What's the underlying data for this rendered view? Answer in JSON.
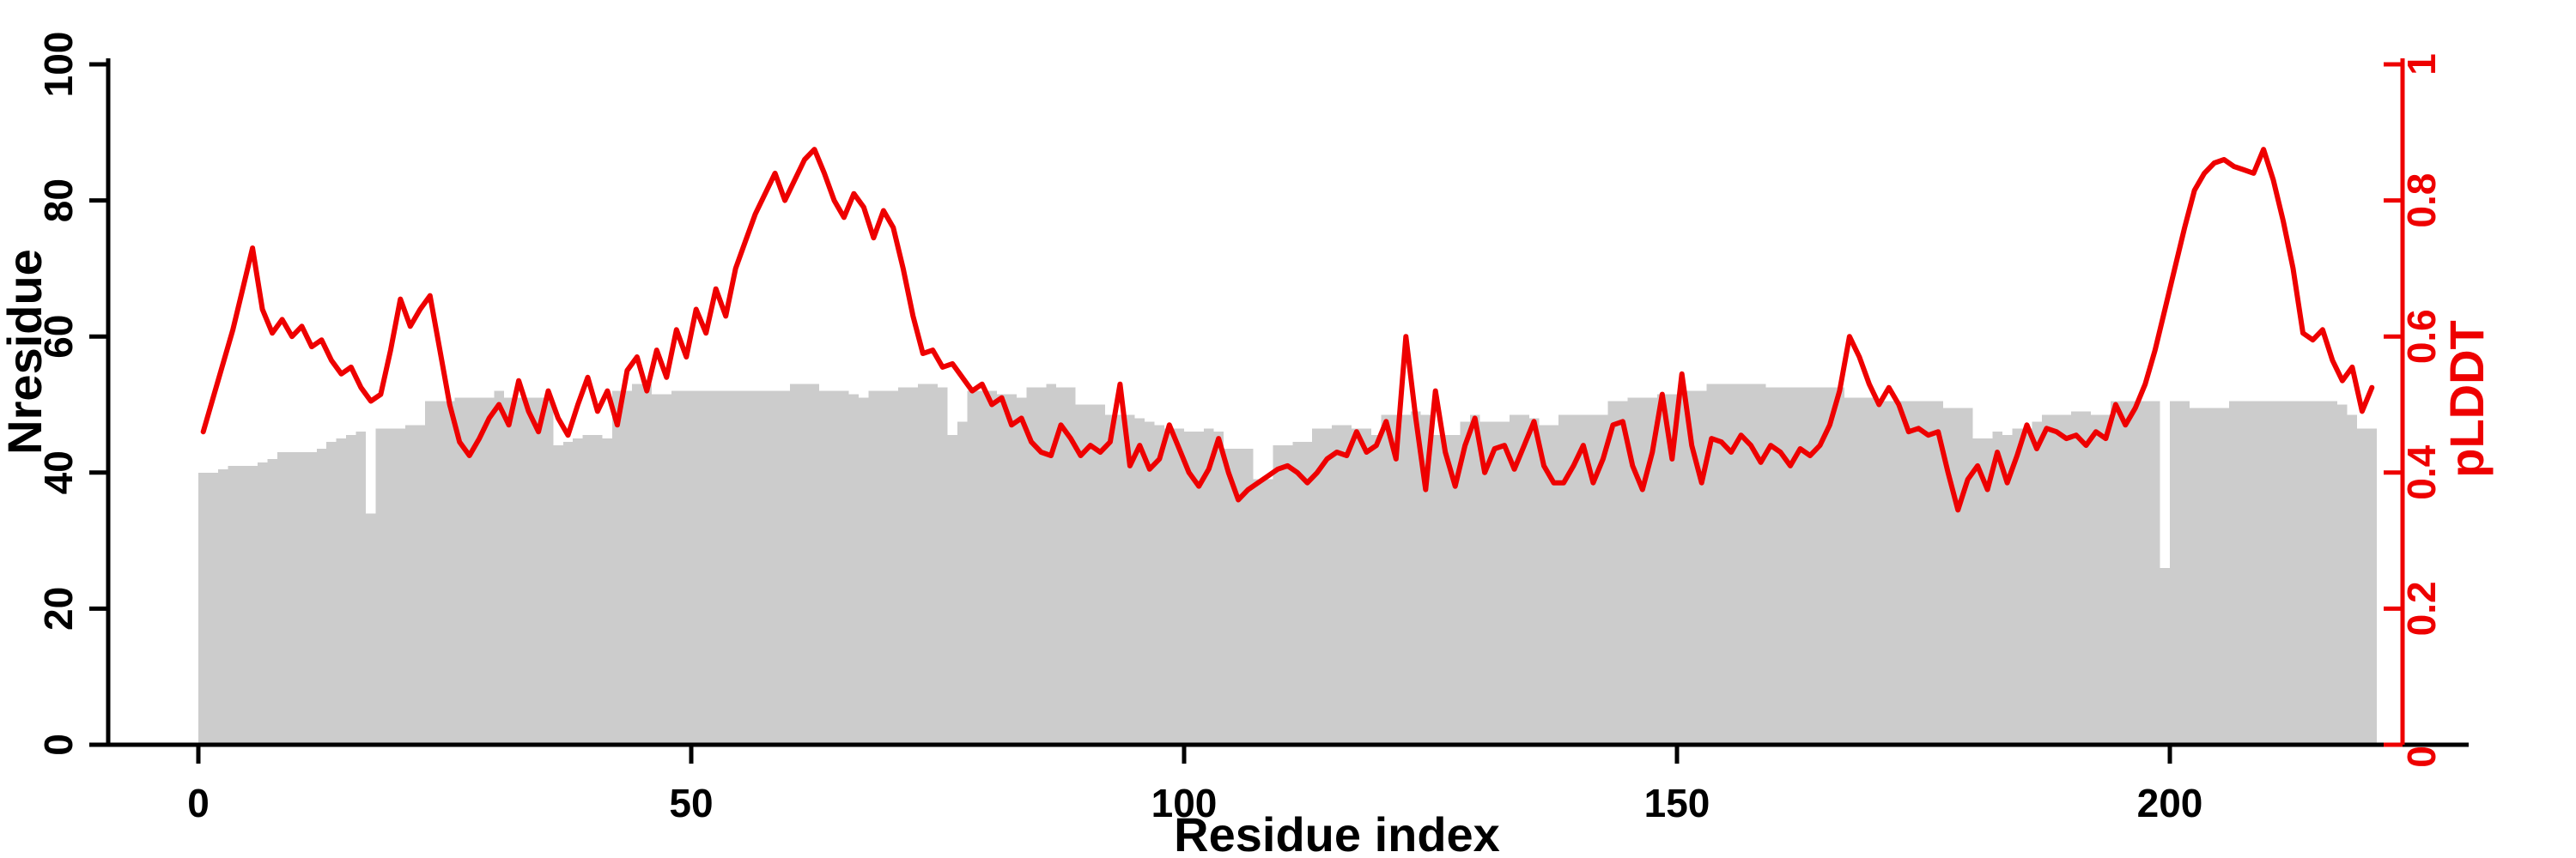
{
  "chart_data": {
    "type": "bar+line",
    "title": "",
    "x_axis": {
      "label": "Residue index",
      "ticks": [
        0,
        50,
        100,
        150,
        200
      ],
      "range": [
        0,
        221
      ]
    },
    "left_axis": {
      "label": "Nresidue",
      "ticks": [
        0,
        20,
        40,
        60,
        80,
        100
      ],
      "range": [
        0,
        100
      ],
      "color": "#000000"
    },
    "right_axis": {
      "label": "pLDDT",
      "tick_labels": [
        "0",
        "0.2",
        "0.4",
        "0.6",
        "0.8",
        "1"
      ],
      "tick_values": [
        0,
        0.2,
        0.4,
        0.6,
        0.8,
        1
      ],
      "range": [
        0,
        1
      ],
      "color": "#ee0000"
    },
    "grid": false,
    "legend": false,
    "background": "#ffffff",
    "series": [
      {
        "name": "Nresidue",
        "type": "bar",
        "axis": "left",
        "color": "#cccccc",
        "values": [
          40,
          40,
          40.5,
          41,
          41,
          41,
          41.5,
          42,
          43,
          43,
          43,
          43,
          43.5,
          44.5,
          45,
          45.5,
          46,
          34,
          46.5,
          46.5,
          46.5,
          47,
          47,
          50.5,
          50.5,
          50.5,
          51,
          51,
          51,
          51,
          52,
          51,
          51,
          51,
          51,
          51,
          44,
          44.5,
          45,
          45.5,
          45.5,
          45,
          52,
          52,
          53,
          53,
          51.5,
          51.5,
          52,
          52,
          52,
          52,
          52,
          52,
          52,
          52,
          52,
          52,
          52,
          52,
          53,
          53,
          53,
          52,
          52,
          52,
          51.5,
          51,
          52,
          52,
          52,
          52.5,
          52.5,
          53,
          53,
          52.5,
          45.5,
          47.5,
          52,
          52,
          52,
          51.5,
          51.5,
          51,
          52.5,
          52.5,
          53,
          52.5,
          52.5,
          50,
          50,
          50,
          48.5,
          48.5,
          48.5,
          48,
          47.5,
          47,
          46.5,
          46.5,
          46,
          46,
          46.5,
          46,
          43.5,
          43.5,
          43.5,
          39,
          39,
          44,
          44,
          44.5,
          44.5,
          46.5,
          46.5,
          47,
          47,
          46.5,
          46.5,
          45.5,
          48.5,
          48.5,
          48.5,
          49,
          48.5,
          45.5,
          45.5,
          45.5,
          47.5,
          48.5,
          47.5,
          47.5,
          47.5,
          48.5,
          48.5,
          48,
          47,
          47,
          48.5,
          48.5,
          48.5,
          48.5,
          48.5,
          50.5,
          50.5,
          51,
          51,
          51,
          51.5,
          51.5,
          51.5,
          52,
          52,
          53,
          53,
          53,
          53,
          53,
          53,
          52.5,
          52.5,
          52.5,
          52.5,
          52.5,
          52.5,
          52.5,
          52.5,
          51,
          51,
          51,
          50.5,
          50.5,
          50.5,
          50.5,
          50.5,
          50.5,
          50.5,
          49.5,
          49.5,
          49.5,
          45,
          45,
          46,
          45.5,
          46.5,
          46.5,
          47.5,
          48.5,
          48.5,
          48.5,
          49,
          49,
          48.5,
          48.5,
          50.5,
          50.5,
          50.5,
          50.5,
          50.5,
          26,
          50.5,
          50.5,
          49.5,
          49.5,
          49.5,
          49.5,
          50.5,
          50.5,
          50.5,
          50.5,
          50.5,
          50.5,
          50.5,
          50.5,
          50.5,
          50.5,
          50.5,
          50,
          48.5,
          46.5,
          46.5
        ]
      },
      {
        "name": "pLDDT",
        "type": "line",
        "axis": "right",
        "color": "#ee0000",
        "values": [
          0.46,
          0.51,
          0.56,
          0.61,
          0.67,
          0.73,
          0.64,
          0.605,
          0.625,
          0.6,
          0.615,
          0.585,
          0.595,
          0.565,
          0.545,
          0.555,
          0.525,
          0.505,
          0.515,
          0.58,
          0.655,
          0.615,
          0.64,
          0.66,
          0.58,
          0.5,
          0.445,
          0.425,
          0.45,
          0.48,
          0.5,
          0.47,
          0.535,
          0.49,
          0.46,
          0.52,
          0.48,
          0.455,
          0.5,
          0.54,
          0.49,
          0.52,
          0.47,
          0.55,
          0.57,
          0.52,
          0.58,
          0.54,
          0.61,
          0.57,
          0.64,
          0.605,
          0.67,
          0.63,
          0.7,
          0.74,
          0.78,
          0.81,
          0.84,
          0.8,
          0.83,
          0.86,
          0.875,
          0.84,
          0.8,
          0.775,
          0.81,
          0.79,
          0.745,
          0.785,
          0.76,
          0.7,
          0.63,
          0.575,
          0.58,
          0.555,
          0.56,
          0.54,
          0.52,
          0.53,
          0.5,
          0.51,
          0.47,
          0.48,
          0.445,
          0.43,
          0.425,
          0.47,
          0.45,
          0.425,
          0.44,
          0.43,
          0.445,
          0.53,
          0.41,
          0.44,
          0.405,
          0.42,
          0.47,
          0.435,
          0.4,
          0.38,
          0.405,
          0.45,
          0.4,
          0.36,
          0.375,
          0.385,
          0.395,
          0.405,
          0.41,
          0.4,
          0.385,
          0.4,
          0.42,
          0.43,
          0.425,
          0.46,
          0.43,
          0.44,
          0.475,
          0.42,
          0.6,
          0.48,
          0.375,
          0.52,
          0.43,
          0.38,
          0.44,
          0.48,
          0.4,
          0.435,
          0.44,
          0.405,
          0.44,
          0.475,
          0.41,
          0.385,
          0.385,
          0.41,
          0.44,
          0.385,
          0.42,
          0.47,
          0.475,
          0.41,
          0.375,
          0.43,
          0.515,
          0.42,
          0.545,
          0.44,
          0.385,
          0.45,
          0.445,
          0.43,
          0.455,
          0.44,
          0.415,
          0.44,
          0.43,
          0.41,
          0.435,
          0.425,
          0.44,
          0.47,
          0.52,
          0.6,
          0.57,
          0.53,
          0.5,
          0.525,
          0.5,
          0.46,
          0.465,
          0.455,
          0.46,
          0.4,
          0.345,
          0.39,
          0.41,
          0.375,
          0.43,
          0.385,
          0.425,
          0.47,
          0.435,
          0.465,
          0.46,
          0.45,
          0.455,
          0.44,
          0.46,
          0.45,
          0.5,
          0.47,
          0.495,
          0.53,
          0.58,
          0.64,
          0.7,
          0.76,
          0.815,
          0.84,
          0.855,
          0.86,
          0.85,
          0.845,
          0.84,
          0.875,
          0.83,
          0.77,
          0.7,
          0.605,
          0.595,
          0.61,
          0.565,
          0.535,
          0.555,
          0.49,
          0.525
        ]
      }
    ]
  }
}
